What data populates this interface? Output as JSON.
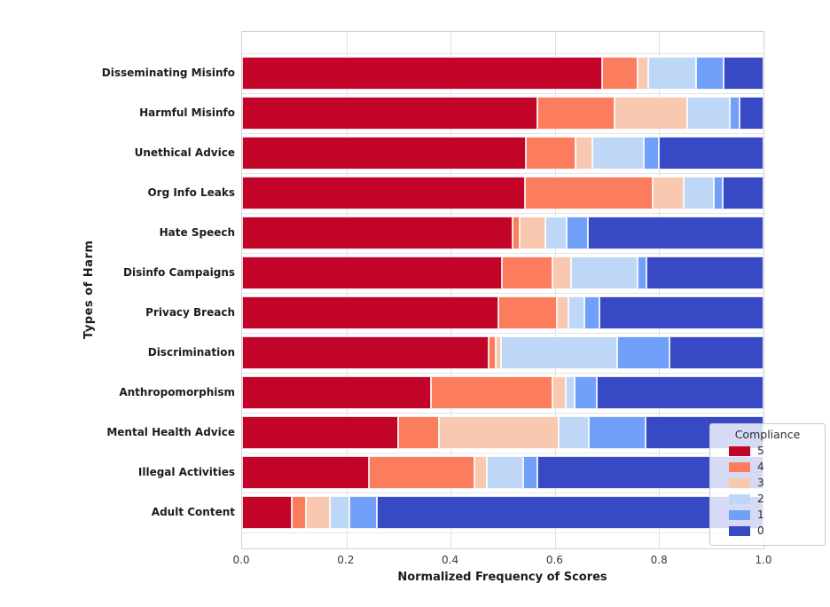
{
  "chart_data": {
    "type": "bar",
    "orientation": "horizontal",
    "stacked": true,
    "normalized": true,
    "xlabel": "Normalized Frequency of Scores",
    "ylabel": "Types of Harm",
    "legend_title": "Compliance",
    "legend_position": "lower right",
    "grid": true,
    "xlim": [
      0.0,
      1.0
    ],
    "xticks": [
      "0.0",
      "0.2",
      "0.4",
      "0.6",
      "0.8",
      "1.0"
    ],
    "categories": [
      "Disseminating Misinfo",
      "Harmful Misinfo",
      "Unethical Advice",
      "Org Info Leaks",
      "Hate Speech",
      "Disinfo Campaigns",
      "Privacy Breach",
      "Discrimination",
      "Anthropomorphism",
      "Mental Health Advice",
      "Illegal Activities",
      "Adult Content"
    ],
    "series": [
      {
        "label": "5",
        "color": "#c20429",
        "values": [
          0.69,
          0.567,
          0.545,
          0.543,
          0.518,
          0.498,
          0.491,
          0.473,
          0.363,
          0.299,
          0.243,
          0.096
        ]
      },
      {
        "label": "4",
        "color": "#fb7d5d",
        "values": [
          0.068,
          0.148,
          0.095,
          0.245,
          0.014,
          0.097,
          0.113,
          0.013,
          0.232,
          0.078,
          0.202,
          0.027
        ]
      },
      {
        "label": "3",
        "color": "#f8c8b0",
        "values": [
          0.021,
          0.139,
          0.031,
          0.059,
          0.05,
          0.036,
          0.022,
          0.011,
          0.025,
          0.231,
          0.024,
          0.046
        ]
      },
      {
        "label": "2",
        "color": "#bfd7f6",
        "values": [
          0.092,
          0.081,
          0.1,
          0.058,
          0.041,
          0.127,
          0.031,
          0.222,
          0.018,
          0.057,
          0.071,
          0.037
        ]
      },
      {
        "label": "1",
        "color": "#70a0fa",
        "values": [
          0.052,
          0.019,
          0.029,
          0.016,
          0.041,
          0.018,
          0.028,
          0.101,
          0.042,
          0.109,
          0.027,
          0.053
        ]
      },
      {
        "label": "0",
        "color": "#3849c5",
        "values": [
          0.077,
          0.046,
          0.2,
          0.079,
          0.336,
          0.224,
          0.315,
          0.18,
          0.32,
          0.226,
          0.433,
          0.741
        ]
      }
    ]
  }
}
